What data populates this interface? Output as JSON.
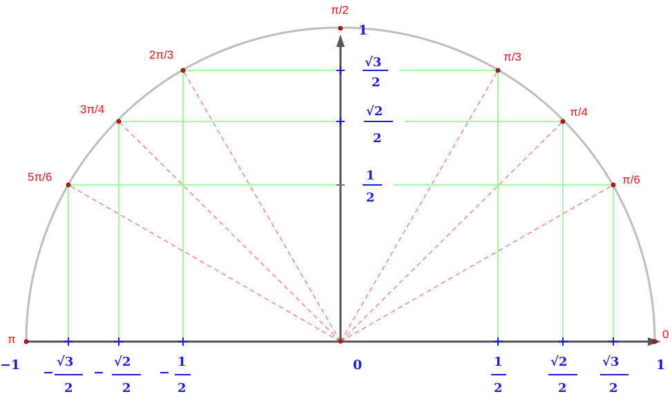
{
  "angle_labels": {
    "zero": "0",
    "pi_6": "π/6",
    "pi_4": "π/4",
    "pi_3": "π/3",
    "pi_2": "π/2",
    "two_pi_3": "2π/3",
    "three_pi_4": "3π/4",
    "five_pi_6": "5π/6",
    "pi": "π"
  },
  "x_axis_labels": {
    "minus_one": "−1",
    "minus_sqrt3_2": {
      "sign": "−",
      "num": "√3",
      "den": "2"
    },
    "minus_sqrt2_2": {
      "sign": "−",
      "num": "√2",
      "den": "2"
    },
    "minus_half": {
      "sign": "−",
      "num": "1",
      "den": "2"
    },
    "zero": "0",
    "half": {
      "num": "1",
      "den": "2"
    },
    "sqrt2_2": {
      "num": "√2",
      "den": "2"
    },
    "sqrt3_2": {
      "num": "√3",
      "den": "2"
    },
    "one": "1"
  },
  "y_axis_labels": {
    "one": "1",
    "sqrt3_2": {
      "num": "√3",
      "den": "2"
    },
    "sqrt2_2": {
      "num": "√2",
      "den": "2"
    },
    "half": {
      "num": "1",
      "den": "2"
    }
  },
  "colors": {
    "arc": "#bdbdbd",
    "axis": "#555555",
    "grid": "#76f076",
    "dashed": "#f26b6b",
    "point": "#c51616",
    "angle_text": "#e5141b",
    "coord_text": "#1b1bd6"
  }
}
